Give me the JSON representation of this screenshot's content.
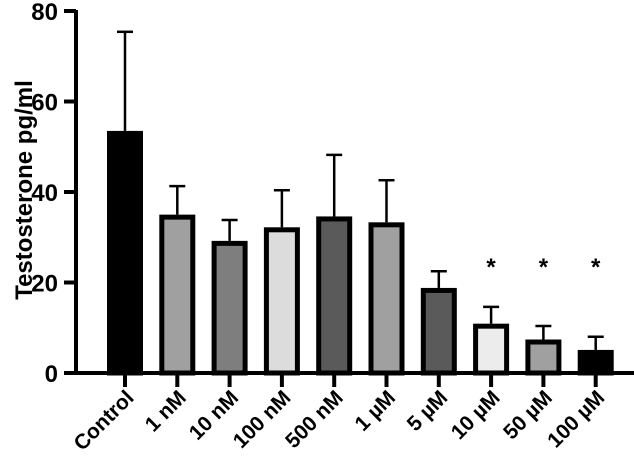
{
  "chart_data": {
    "type": "bar",
    "title": "",
    "xlabel": "",
    "ylabel": "Testosterone pg/ml",
    "ylim": [
      0,
      80
    ],
    "yticks": [
      0,
      20,
      40,
      60,
      80
    ],
    "grid": false,
    "legend": null,
    "categories": [
      "Control",
      "1 nM",
      "10 nM",
      "100 nM",
      "500 nM",
      "1 µM",
      "5 µM",
      "10 µM",
      "50 µM",
      "100 µM"
    ],
    "values": [
      53.5,
      35.0,
      29.2,
      32.2,
      34.6,
      33.3,
      18.8,
      10.9,
      7.4,
      5.1
    ],
    "error_upper": [
      75.4,
      41.3,
      33.8,
      40.4,
      48.2,
      42.6,
      22.5,
      14.6,
      10.4,
      8.0
    ],
    "error_bars": "SD (upper only)",
    "bar_colors": [
      "#000000",
      "#a0a0a0",
      "#7e7e7e",
      "#dcdcdc",
      "#5a5a5a",
      "#a0a0a0",
      "#5a5a5a",
      "#ececec",
      "#a0a0a0",
      "#000000"
    ],
    "significance": [
      "",
      "",
      "",
      "",
      "",
      "",
      "",
      "*",
      "*",
      "*"
    ]
  }
}
